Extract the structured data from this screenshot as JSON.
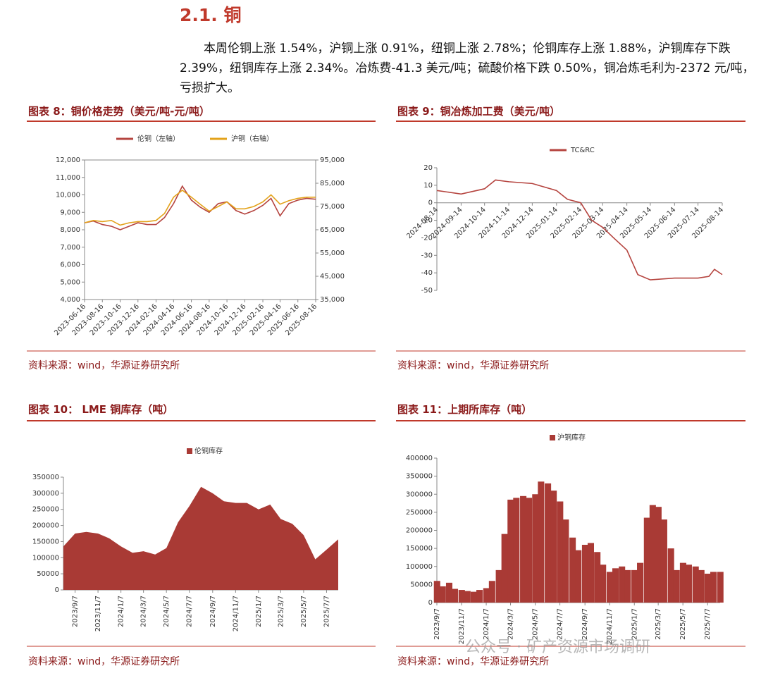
{
  "heading": "2.1. 铜",
  "paragraph": "本周伦铜上涨 1.54%，沪铜上涨 0.91%，纽铜上涨 2.78%；伦铜库存上涨 1.88%，沪铜库存下跌 2.39%，纽铜库存上涨 2.34%。冶炼费-41.3 美元/吨；硫酸价格下跌 0.50%，铜冶炼毛利为-2372 元/吨，亏损扩大。",
  "watermark": "公众号 · 矿产资源市场调研",
  "chart_data": [
    {
      "type": "line",
      "title": "图表 8：铜价格走势（美元/吨-元/吨）",
      "source": "资料来源：wind，华源证券研究所",
      "x": [
        "2023-06-16",
        "2023-07-16",
        "2023-08-16",
        "2023-09-16",
        "2023-10-16",
        "2023-11-16",
        "2023-12-16",
        "2024-01-16",
        "2024-02-16",
        "2024-03-16",
        "2024-04-16",
        "2024-05-16",
        "2024-06-16",
        "2024-07-16",
        "2024-08-16",
        "2024-09-16",
        "2024-10-16",
        "2024-11-16",
        "2024-12-16",
        "2025-01-16",
        "2025-02-16",
        "2025-03-16",
        "2025-04-16",
        "2025-05-16",
        "2025-06-16",
        "2025-07-16",
        "2025-08-16"
      ],
      "xticks": [
        "2023-06-16",
        "2023-08-16",
        "2023-10-16",
        "2023-12-16",
        "2024-02-16",
        "2024-04-16",
        "2024-06-16",
        "2024-08-16",
        "2024-10-16",
        "2024-12-16",
        "2025-02-16",
        "2025-04-16",
        "2025-06-16",
        "2025-08-16"
      ],
      "series": [
        {
          "name": "伦铜（左轴）",
          "color": "#b5443f",
          "values": [
            8400,
            8500,
            8300,
            8200,
            8000,
            8200,
            8400,
            8300,
            8300,
            8700,
            9500,
            10500,
            9700,
            9300,
            9000,
            9500,
            9600,
            9100,
            8900,
            9100,
            9400,
            9800,
            8800,
            9500,
            9700,
            9800,
            9750
          ]
        },
        {
          "name": "沪铜（右轴）",
          "color": "#e3a21a",
          "axis": "y2",
          "values": [
            68000,
            69000,
            68500,
            69000,
            67000,
            68000,
            68500,
            68500,
            69000,
            72000,
            79000,
            82000,
            79000,
            76000,
            73000,
            75000,
            77000,
            74000,
            74000,
            75000,
            77000,
            80000,
            76000,
            77500,
            78500,
            79000,
            79000
          ]
        }
      ],
      "ylim": [
        4000,
        12000
      ],
      "yticks": [
        {
          "value": 4000,
          "label": "4,000"
        },
        {
          "value": 5000,
          "label": "5,000"
        },
        {
          "value": 6000,
          "label": "6,000"
        },
        {
          "value": 7000,
          "label": "7,000"
        },
        {
          "value": 8000,
          "label": "8,000"
        },
        {
          "value": 9000,
          "label": "9,000"
        },
        {
          "value": 10000,
          "label": "10,000"
        },
        {
          "value": 11000,
          "label": "11,000"
        },
        {
          "value": 12000,
          "label": "12,000"
        }
      ],
      "y2lim": [
        35000,
        95000
      ],
      "y2ticks": [
        {
          "value": 35000,
          "label": "35,000"
        },
        {
          "value": 45000,
          "label": "45,000"
        },
        {
          "value": 55000,
          "label": "55,000"
        },
        {
          "value": 65000,
          "label": "65,000"
        },
        {
          "value": 75000,
          "label": "75,000"
        },
        {
          "value": 85000,
          "label": "85,000"
        },
        {
          "value": 95000,
          "label": "95,000"
        }
      ]
    },
    {
      "type": "line",
      "title": "图表 9：铜冶炼加工费（美元/吨）",
      "source": "资料来源：wind，华源证券研究所",
      "x": [
        "2024-08-14",
        "2024-09-14",
        "2024-10-14",
        "2024-10-28",
        "2024-11-14",
        "2024-12-14",
        "2025-01-14",
        "2025-01-28",
        "2025-02-14",
        "2025-02-28",
        "2025-03-14",
        "2025-03-28",
        "2025-04-14",
        "2025-04-28",
        "2025-05-14",
        "2025-06-14",
        "2025-07-14",
        "2025-07-28",
        "2025-08-04",
        "2025-08-14"
      ],
      "xticks": [
        "2024-08-14",
        "2024-09-14",
        "2024-10-14",
        "2024-11-14",
        "2024-12-14",
        "2025-01-14",
        "2025-02-14",
        "2025-03-14",
        "2025-04-14",
        "2025-05-14",
        "2025-06-14",
        "2025-07-14",
        "2025-08-14"
      ],
      "series": [
        {
          "name": "TC&RC",
          "color": "#b5443f",
          "values": [
            7,
            5,
            8,
            13,
            12,
            11,
            7,
            2,
            0,
            -10,
            -14,
            -20,
            -27,
            -41,
            -44,
            -43,
            -43,
            -42,
            -38,
            -41
          ]
        }
      ],
      "ylim": [
        -50,
        20
      ],
      "yticks": [
        -50,
        -40,
        -30,
        -20,
        -10,
        0,
        10,
        20
      ]
    },
    {
      "type": "area",
      "title": "图表 10： LME 铜库存（吨）",
      "source": "资料来源：wind，华源证券研究所",
      "x": [
        "2023/8/7",
        "2023/9/7",
        "2023/10/7",
        "2023/11/7",
        "2023/12/7",
        "2024/1/7",
        "2024/2/7",
        "2024/3/7",
        "2024/4/7",
        "2024/5/7",
        "2024/6/7",
        "2024/7/7",
        "2024/8/7",
        "2024/9/7",
        "2024/10/7",
        "2024/11/7",
        "2024/12/7",
        "2025/1/7",
        "2025/2/7",
        "2025/3/7",
        "2025/4/7",
        "2025/5/7",
        "2025/6/7",
        "2025/7/7",
        "2025/8/7"
      ],
      "xticks": [
        "2023/9/7",
        "2023/11/7",
        "2024/1/7",
        "2024/3/7",
        "2024/5/7",
        "2024/7/7",
        "2024/9/7",
        "2024/11/7",
        "2025/1/7",
        "2025/3/7",
        "2025/5/7",
        "2025/7/7"
      ],
      "series": [
        {
          "name": "伦铜库存",
          "color": "#a93a35",
          "values": [
            135000,
            175000,
            180000,
            175000,
            160000,
            135000,
            115000,
            120000,
            110000,
            130000,
            210000,
            260000,
            320000,
            300000,
            275000,
            270000,
            270000,
            250000,
            265000,
            220000,
            205000,
            170000,
            95000,
            125000,
            157000
          ]
        }
      ],
      "ylim": [
        0,
        350000
      ],
      "yticks": [
        0,
        50000,
        100000,
        150000,
        200000,
        250000,
        300000,
        350000
      ]
    },
    {
      "type": "bar",
      "title": "图表 11：上期所库存（吨）",
      "source": "资料来源：wind，华源证券研究所",
      "x": [
        "2023/9/7",
        "2023/9/21",
        "2023/10/7",
        "2023/10/21",
        "2023/11/7",
        "2023/11/21",
        "2023/12/7",
        "2023/12/21",
        "2024/1/7",
        "2024/1/21",
        "2024/2/7",
        "2024/2/21",
        "2024/3/7",
        "2024/3/21",
        "2024/4/7",
        "2024/4/21",
        "2024/5/7",
        "2024/5/21",
        "2024/6/7",
        "2024/6/21",
        "2024/7/7",
        "2024/7/21",
        "2024/8/7",
        "2024/8/21",
        "2024/9/7",
        "2024/9/21",
        "2024/10/7",
        "2024/10/21",
        "2024/11/7",
        "2024/11/21",
        "2024/12/7",
        "2024/12/21",
        "2025/1/7",
        "2025/1/21",
        "2025/2/7",
        "2025/2/21",
        "2025/3/7",
        "2025/3/21",
        "2025/4/7",
        "2025/4/21",
        "2025/5/7",
        "2025/5/21",
        "2025/6/7",
        "2025/6/21",
        "2025/7/7",
        "2025/7/21",
        "2025/8/7"
      ],
      "xticks": [
        "2023/9/7",
        "2023/11/7",
        "2024/1/7",
        "2024/3/7",
        "2024/5/7",
        "2024/7/7",
        "2024/9/7",
        "2024/11/7",
        "2025/1/7",
        "2025/3/7",
        "2025/5/7",
        "2025/7/7"
      ],
      "series": [
        {
          "name": "沪铜库存",
          "color": "#a93a35",
          "values": [
            60000,
            45000,
            55000,
            38000,
            35000,
            32000,
            30000,
            35000,
            40000,
            60000,
            90000,
            190000,
            285000,
            290000,
            295000,
            290000,
            300000,
            335000,
            330000,
            310000,
            280000,
            230000,
            180000,
            145000,
            160000,
            165000,
            140000,
            105000,
            85000,
            95000,
            100000,
            90000,
            90000,
            110000,
            235000,
            270000,
            265000,
            230000,
            150000,
            90000,
            110000,
            105000,
            100000,
            90000,
            80000,
            85000,
            85000
          ]
        }
      ],
      "ylim": [
        0,
        400000
      ],
      "yticks": [
        0,
        50000,
        100000,
        150000,
        200000,
        250000,
        300000,
        350000,
        400000
      ]
    }
  ]
}
